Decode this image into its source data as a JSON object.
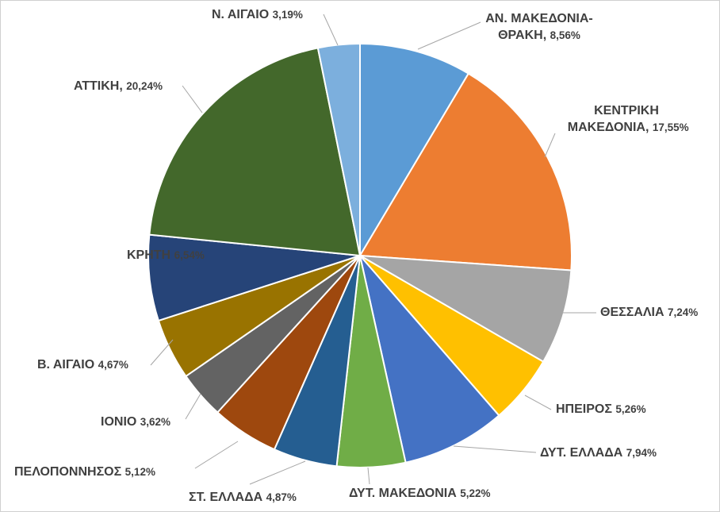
{
  "chart_data": {
    "type": "pie",
    "title": "",
    "slices": [
      {
        "label": "ΑΝ. ΜΑΚΕΔΟΝΙΑ-ΘΡΑΚΗ",
        "value": 8.56,
        "value_text": "8,56%",
        "color": "#5B9BD5"
      },
      {
        "label": "ΚΕΝΤΡΙΚΗ ΜΑΚΕΔΟΝΙΑ",
        "value": 17.55,
        "value_text": "17,55%",
        "color": "#ED7D31"
      },
      {
        "label": "ΘΕΣΣΑΛΙΑ",
        "value": 7.24,
        "value_text": "7,24%",
        "color": "#A5A5A5"
      },
      {
        "label": "ΗΠΕΙΡΟΣ",
        "value": 5.26,
        "value_text": "5,26%",
        "color": "#FFC000"
      },
      {
        "label": "ΔΥΤ. ΕΛΛΑΔΑ",
        "value": 7.94,
        "value_text": "7,94%",
        "color": "#4472C4"
      },
      {
        "label": "ΔΥΤ. ΜΑΚΕΔΟΝΙΑ",
        "value": 5.22,
        "value_text": "5,22%",
        "color": "#70AD47"
      },
      {
        "label": "ΣΤ. ΕΛΛΑΔΑ",
        "value": 4.87,
        "value_text": "4,87%",
        "color": "#255E91"
      },
      {
        "label": "ΠΕΛΟΠΟΝΝΗΣΟΣ",
        "value": 5.12,
        "value_text": "5,12%",
        "color": "#9E480E"
      },
      {
        "label": "ΙΟΝΙΟ",
        "value": 3.62,
        "value_text": "3,62%",
        "color": "#636363"
      },
      {
        "label": "Β. ΑΙΓΑΙΟ",
        "value": 4.67,
        "value_text": "4,67%",
        "color": "#997300"
      },
      {
        "label": "ΚΡΗΤΗ",
        "value": 6.54,
        "value_text": "6,54%",
        "color": "#264478"
      },
      {
        "label": "ΑΤΤΙΚΗ",
        "value": 20.24,
        "value_text": "20,24%",
        "color": "#43682B"
      },
      {
        "label": "Ν. ΑΙΓΑΙΟ",
        "value": 3.19,
        "value_text": "3,19%",
        "color": "#7CAFDD"
      }
    ],
    "legend": "none",
    "data_labels": "outside-with-leader-lines"
  }
}
